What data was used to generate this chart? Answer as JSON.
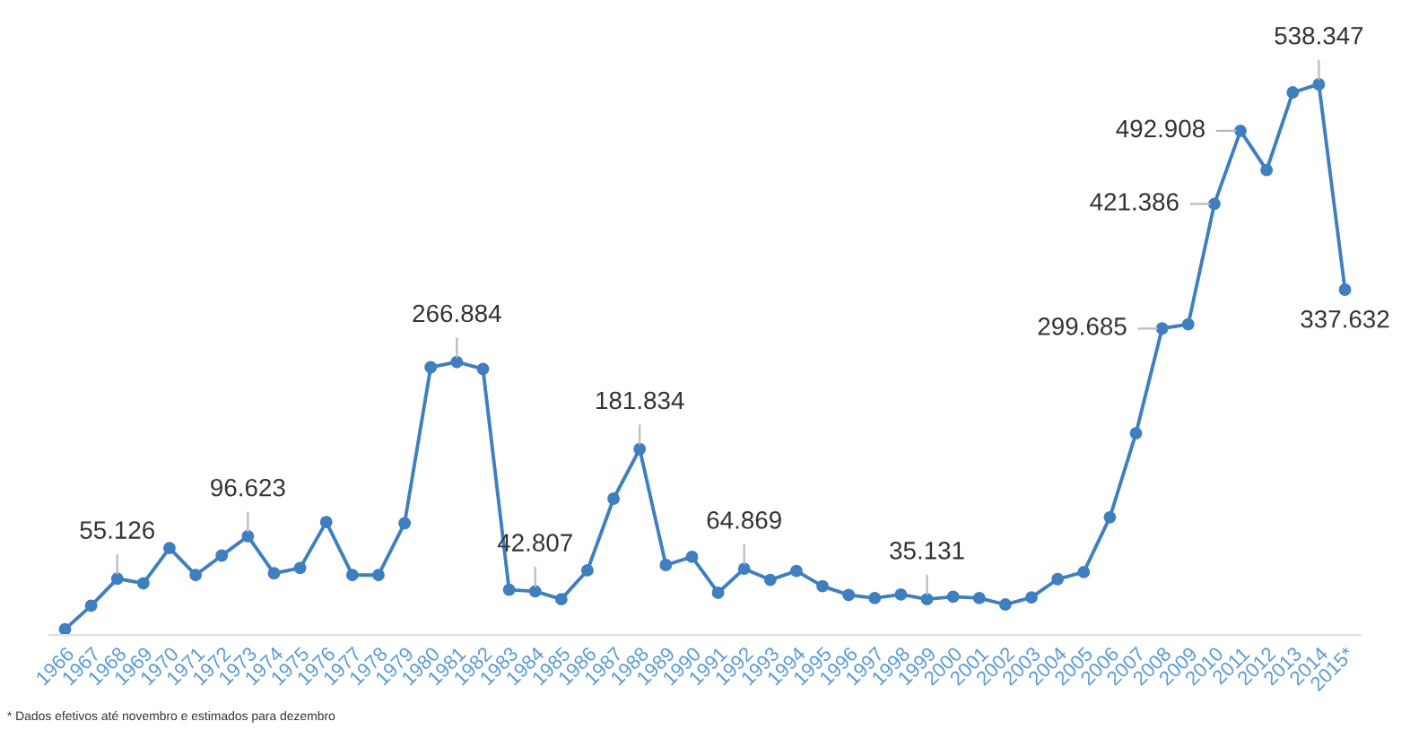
{
  "chart_data": {
    "type": "line",
    "categories": [
      "1966",
      "1967",
      "1968",
      "1969",
      "1970",
      "1971",
      "1972",
      "1973",
      "1974",
      "1975",
      "1976",
      "1977",
      "1978",
      "1979",
      "1980",
      "1981",
      "1982",
      "1983",
      "1984",
      "1985",
      "1986",
      "1987",
      "1988",
      "1989",
      "1990",
      "1991",
      "1992",
      "1993",
      "1994",
      "1995",
      "1996",
      "1997",
      "1998",
      "1999",
      "2000",
      "2001",
      "2002",
      "2003",
      "2004",
      "2005",
      "2006",
      "2007",
      "2008",
      "2009",
      "2010",
      "2011",
      "2012",
      "2013",
      "2014",
      "2015*"
    ],
    "series": [
      {
        "color": "#3f7fbf",
        "values": [
          5.7,
          28.8,
          55.126,
          50.6,
          85.1,
          58.7,
          77.7,
          96.623,
          60.4,
          65.6,
          110.5,
          58.7,
          58.7,
          109.3,
          261.8,
          266.884,
          260.1,
          44.3,
          42.807,
          35.1,
          63.3,
          133.4,
          181.834,
          68.5,
          76.5,
          41.4,
          64.869,
          54.0,
          62.7,
          47.8,
          39.2,
          36.2,
          39.7,
          35.131,
          37.5,
          36.2,
          29.9,
          36.8,
          54.7,
          61.6,
          115.1,
          197.3,
          299.685,
          303.8,
          421.386,
          492.908,
          454.5,
          530.4,
          538.347,
          337.632
        ],
        "value_labels": [
          null,
          null,
          "55.126",
          null,
          null,
          null,
          null,
          "96.623",
          null,
          null,
          null,
          null,
          null,
          null,
          null,
          "266.884",
          null,
          null,
          "42.807",
          null,
          null,
          null,
          "181.834",
          null,
          null,
          null,
          "64.869",
          null,
          null,
          null,
          null,
          null,
          null,
          "35.131",
          null,
          null,
          null,
          null,
          null,
          null,
          null,
          null,
          "299.685",
          null,
          "421.386",
          "492.908",
          null,
          null,
          "538.347",
          "337.632"
        ]
      }
    ],
    "marker": "circle",
    "line_style": "solid",
    "grid": false,
    "legend": false,
    "tick_labels": "x",
    "annotations": [
      "* Dados efetivos até novembro e estimados para dezembro"
    ]
  }
}
